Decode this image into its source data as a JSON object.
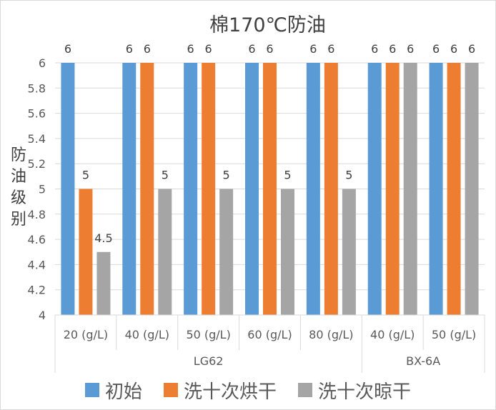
{
  "chart_data": {
    "type": "bar",
    "title": "棉170℃防油",
    "ylabel": "防油级别",
    "xlabel": "",
    "ylim": [
      4,
      6
    ],
    "yticks": [
      "4",
      "4.2",
      "4.4",
      "4.6",
      "4.8",
      "5",
      "5.2",
      "5.4",
      "5.6",
      "5.8",
      "6"
    ],
    "grid": true,
    "legend_position": "bottom",
    "groups": [
      {
        "name": "LG62",
        "categories": [
          "20 (g/L)",
          "40 (g/L)",
          "50 (g/L)",
          "60 (g/L)",
          "80 (g/L)"
        ]
      },
      {
        "name": "BX-6A",
        "categories": [
          "40 (g/L)",
          "50 (g/L)"
        ]
      }
    ],
    "categories": [
      "20 (g/L)",
      "40 (g/L)",
      "50 (g/L)",
      "60 (g/L)",
      "80 (g/L)",
      "40 (g/L)",
      "50 (g/L)"
    ],
    "series": [
      {
        "name": "初始",
        "color": "#5b9bd5",
        "values": [
          6,
          6,
          6,
          6,
          6,
          6,
          6
        ],
        "labels": [
          "6",
          "6",
          "6",
          "6",
          "6",
          "6",
          "6"
        ]
      },
      {
        "name": "洗十次烘干",
        "color": "#ed7d31",
        "values": [
          5,
          6,
          6,
          6,
          6,
          6,
          6
        ],
        "labels": [
          "5",
          "6",
          "6",
          "6",
          "6",
          "6",
          "6"
        ]
      },
      {
        "name": "洗十次晾干",
        "color": "#a5a5a5",
        "values": [
          4.5,
          5,
          5,
          5,
          5,
          6,
          6
        ],
        "labels": [
          "4.5",
          "5",
          "5",
          "5",
          "5",
          "6",
          "6"
        ]
      }
    ]
  }
}
